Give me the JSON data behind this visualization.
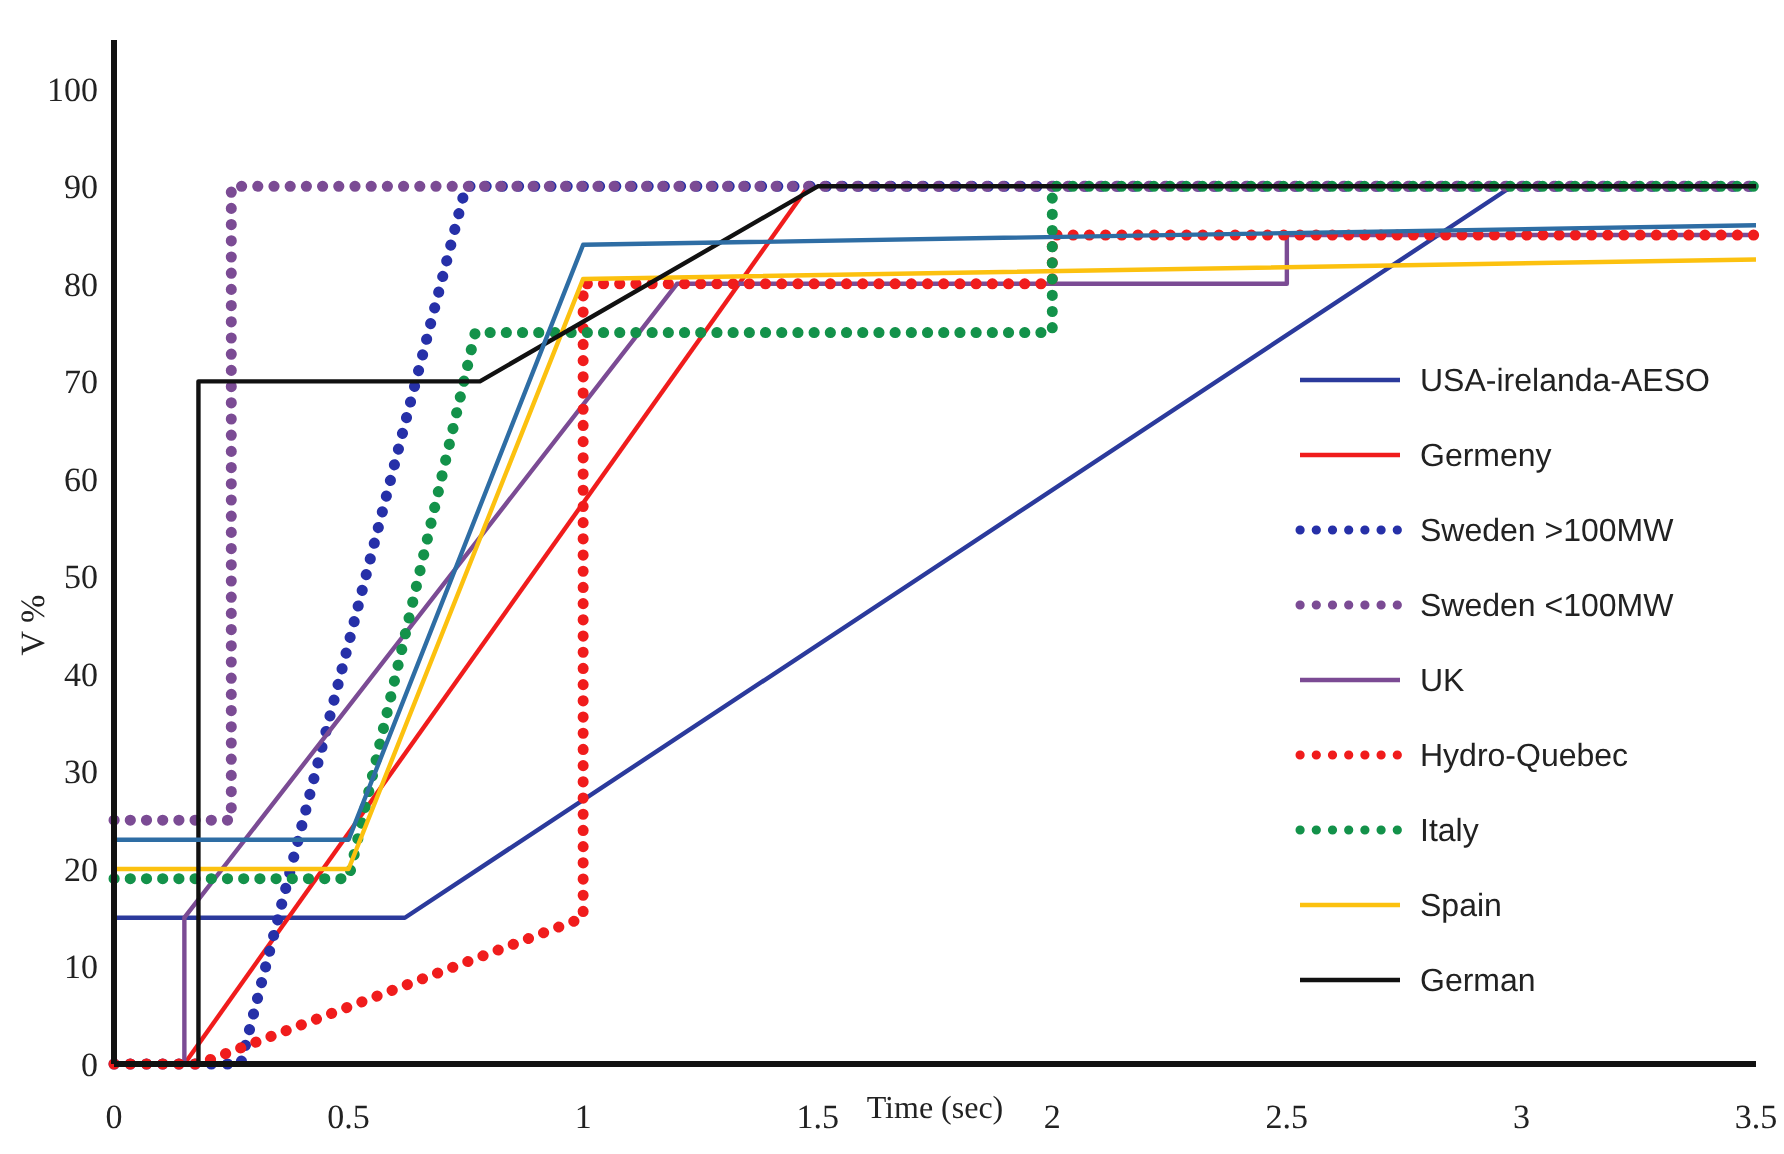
{
  "chart_data": {
    "type": "line",
    "xlabel": "Time (sec)",
    "ylabel": "V %",
    "xlim": [
      0,
      3.5
    ],
    "xticks": [
      0,
      0.5,
      1,
      1.5,
      2,
      2.5,
      3,
      3.5
    ],
    "ylim": [
      0,
      105
    ],
    "yticks": [
      0,
      10,
      20,
      30,
      40,
      50,
      60,
      70,
      80,
      90,
      100
    ],
    "grid": false,
    "legend": "right",
    "marker": "none",
    "series": [
      {
        "name": "USA-irelanda-AESO",
        "color": "#2b3a9c",
        "line_style": "solid",
        "x": [
          0,
          0.62,
          2.98,
          3.5
        ],
        "values": [
          15,
          15,
          90,
          90
        ]
      },
      {
        "name": "Germeny",
        "color": "#f01c1c",
        "line_style": "solid",
        "x": [
          0.15,
          1.48
        ],
        "values": [
          0,
          90
        ]
      },
      {
        "name": "Sweden >100MW",
        "color": "#2630a8",
        "line_style": "dotted",
        "x": [
          0,
          0.27,
          0.75,
          3.5
        ],
        "values": [
          0,
          0,
          90,
          90
        ]
      },
      {
        "name": "Sweden <100MW",
        "color": "#7b4b94",
        "line_style": "dotted",
        "x": [
          0,
          0.25,
          0.25,
          3.5
        ],
        "values": [
          25,
          25,
          90,
          90
        ]
      },
      {
        "name": "UK",
        "color": "#7b4b94",
        "line_style": "solid",
        "x": [
          0.15,
          0.15,
          1.2,
          2.5,
          2.5,
          3.5
        ],
        "values": [
          0,
          15,
          80,
          80,
          85,
          85
        ]
      },
      {
        "name": "Hydro-Quebec",
        "color": "#f01c1c",
        "line_style": "dotted",
        "x": [
          0,
          0.18,
          1,
          1,
          2,
          2,
          3.5
        ],
        "values": [
          0,
          0,
          15,
          80,
          80,
          85,
          85
        ]
      },
      {
        "name": "Italy",
        "color": "#13924a",
        "line_style": "dotted",
        "x": [
          0,
          0.5,
          0.77,
          2,
          2,
          3.5
        ],
        "values": [
          19,
          19,
          75,
          75,
          90,
          90
        ]
      },
      {
        "name": "Spain",
        "color": "#fcc10f",
        "line_style": "solid",
        "x": [
          0,
          0.5,
          1,
          3.5
        ],
        "values": [
          20,
          20,
          80.5,
          82.5
        ]
      },
      {
        "name": "German",
        "color": "#111111",
        "line_style": "solid",
        "x": [
          0.18,
          0.18,
          0.78,
          1.5,
          3.5
        ],
        "values": [
          0,
          70,
          70,
          90,
          90
        ]
      },
      {
        "color": "#2e6da4",
        "line_style": "solid",
        "x": [
          0,
          0.5,
          1,
          3.5
        ],
        "values": [
          23,
          23,
          84,
          86
        ]
      }
    ]
  }
}
